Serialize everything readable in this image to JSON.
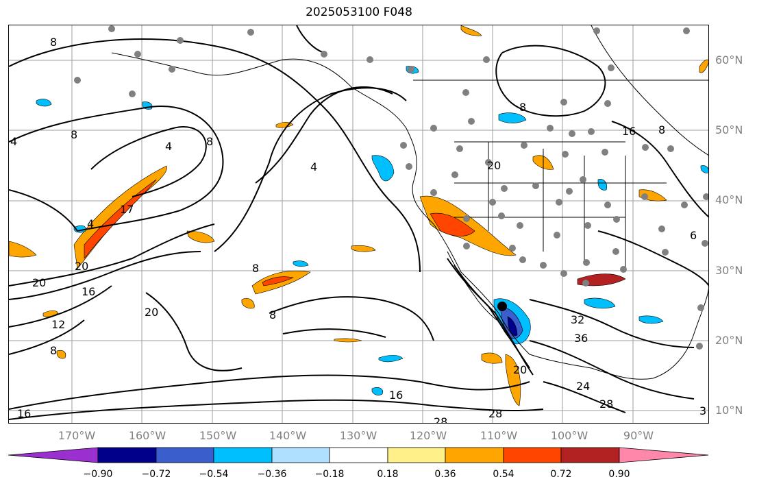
{
  "title": "2025053100 F048",
  "map": {
    "lat_labels": [
      "60°N",
      "50°N",
      "40°N",
      "30°N",
      "20°N",
      "10°N"
    ],
    "lon_labels": [
      "170°W",
      "160°W",
      "150°W",
      "140°W",
      "130°W",
      "120°W",
      "110°W",
      "100°W",
      "90°W"
    ],
    "contour_labels": [
      "8",
      "4",
      "8",
      "4",
      "4",
      "17",
      "4",
      "20",
      "20",
      "16",
      "12",
      "8",
      "20",
      "8",
      "8",
      "8",
      "8",
      "16",
      "8",
      "20",
      "32",
      "36",
      "24",
      "28",
      "28",
      "16",
      "28",
      "20",
      "16",
      "3",
      "6"
    ]
  },
  "colorbar": {
    "tick_labels": [
      "−0.90",
      "−0.72",
      "−0.54",
      "−0.36",
      "−0.18",
      "0.18",
      "0.36",
      "0.54",
      "0.72",
      "0.90"
    ],
    "colors": [
      "#9b30d0",
      "#00008b",
      "#3a5fcd",
      "#00bfff",
      "#b0e0ff",
      "#ffffff",
      "#fff08a",
      "#ffa500",
      "#ff4500",
      "#b22222",
      "#ff88aa"
    ]
  }
}
